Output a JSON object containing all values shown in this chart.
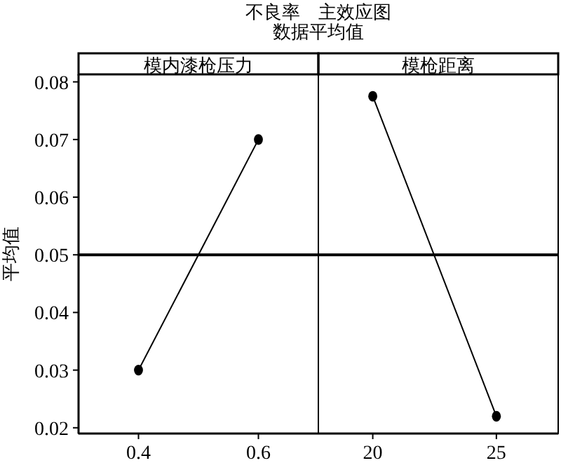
{
  "chart_data": [
    {
      "type": "line",
      "title": "不良率　主效应图",
      "subtitle": "数据平均值",
      "ylabel": "平均值",
      "xlabel": "模内漆枪压力",
      "x": [
        0.4,
        0.6
      ],
      "series": [
        {
          "color": "#000000",
          "values": [
            0.03,
            0.07
          ]
        }
      ],
      "xlim": [
        0.3,
        0.7
      ],
      "xticks": [
        0.4,
        0.6
      ],
      "ylim": [
        0.019,
        0.0813
      ],
      "yticks": [
        0.02,
        0.03,
        0.04,
        0.05,
        0.06,
        0.07,
        0.08
      ],
      "marker": "circle",
      "ref_lines": [
        {
          "axis": "y",
          "value": 0.05
        }
      ]
    },
    {
      "type": "line",
      "xlabel": "模枪距离",
      "x": [
        20,
        25
      ],
      "series": [
        {
          "color": "#000000",
          "values": [
            0.0775,
            0.022
          ]
        }
      ],
      "xlim": [
        17.8,
        27.5
      ],
      "xticks": [
        20,
        25
      ],
      "ylim": [
        0.019,
        0.0813
      ],
      "marker": "circle",
      "tick_labels": "x",
      "ref_lines": [
        {
          "axis": "y",
          "value": 0.05
        }
      ]
    }
  ]
}
